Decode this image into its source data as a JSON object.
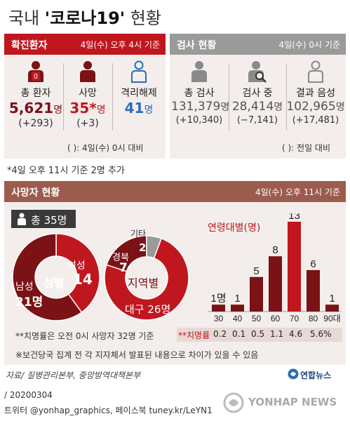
{
  "title": {
    "prefix": "국내 ",
    "bold": "'코로나19'",
    "suffix": " 현황"
  },
  "colors": {
    "dark_red": "#7a1216",
    "red": "#c0171f",
    "blue": "#2c6db5",
    "gray_head": "#9a9a9a",
    "brown_head": "#9b5c4e",
    "panel_bg": "#f3eeec",
    "rate_red": "#c0171f"
  },
  "confirmed": {
    "header": "확진환자",
    "date": "4일(수) 오후 4시 기준",
    "items": [
      {
        "label": "총 환자",
        "value": "5,621",
        "unit": "명",
        "delta": "(+293)",
        "icon": "person-red-badge-icon"
      },
      {
        "label": "사망",
        "value": "35*",
        "unit": "명",
        "delta": "(+3)",
        "icon": "person-dark-red-icon"
      },
      {
        "label": "격리해제",
        "value": "41",
        "unit": "명",
        "delta": "",
        "icon": "person-blue-outline-icon"
      }
    ],
    "note": "(   ): 4일(수) 0시 대비"
  },
  "tests": {
    "header": "검사 현황",
    "date": "4일(수) 0시 기준",
    "items": [
      {
        "label": "총 검사",
        "value": "131,379",
        "unit": "명",
        "delta": "(+10,340)",
        "icon": "person-gray-icon"
      },
      {
        "label": "검사 중",
        "value": "28,414",
        "unit": "명",
        "delta": "(−7,141)",
        "icon": "person-magnifier-icon"
      },
      {
        "label": "결과 음성",
        "value": "102,965",
        "unit": "명",
        "delta": "(+17,481)",
        "icon": "person-gray-outline-icon"
      }
    ],
    "note": "(   ): 전일 대비"
  },
  "footnote": "*4일 오후 11시 기준 2명 추가",
  "deaths": {
    "header": "사망자 현황",
    "date": "4일(수) 오후 11시 기준",
    "total_label": "총 35명"
  },
  "chart_data": [
    {
      "type": "pie",
      "title": "성별",
      "slices": [
        {
          "name": "여성",
          "value": 14
        },
        {
          "name": "남성",
          "value": 21
        }
      ],
      "labels": {
        "female_name": "여성",
        "female_value": "14",
        "male_name": "남성",
        "male_value": "21명"
      }
    },
    {
      "type": "pie",
      "title": "지역별",
      "slices": [
        {
          "name": "대구",
          "value": 26
        },
        {
          "name": "경북",
          "value": 7
        },
        {
          "name": "기타",
          "value": 2
        }
      ],
      "labels": {
        "daegu": "대구 26명",
        "gyeongbuk_name": "경북",
        "gyeongbuk_value": "7",
        "other_name": "기타",
        "other_value": "2"
      }
    },
    {
      "type": "bar",
      "title": "연령대별(명)",
      "categories": [
        "30",
        "40",
        "50",
        "60",
        "70",
        "80",
        "90대"
      ],
      "values": [
        1,
        1,
        5,
        8,
        13,
        6,
        1
      ],
      "value_labels": [
        "1명",
        "1",
        "5",
        "8",
        "13",
        "6",
        "1"
      ],
      "rates": [
        "0.2",
        "0.1",
        "0.5",
        "1.1",
        "4.6",
        "5.6%"
      ],
      "rate_label": "**치명률"
    }
  ],
  "fatality_note": "**치명률은 오전 0시 사망자 32명 기준",
  "disclaimer": "※보건당국 집계 전 각 지자체서 발표된 내용으로 차이가 있을 수 있음",
  "source": "자료/ 질병관리본부, 중앙방역대책본부",
  "agency": "연합뉴스",
  "date_code": "/ 20200304",
  "social": "트위터 @yonhap_graphics, 페이스북 tuney.kr/LeYN1",
  "watermark": "YONHAP NEWS"
}
